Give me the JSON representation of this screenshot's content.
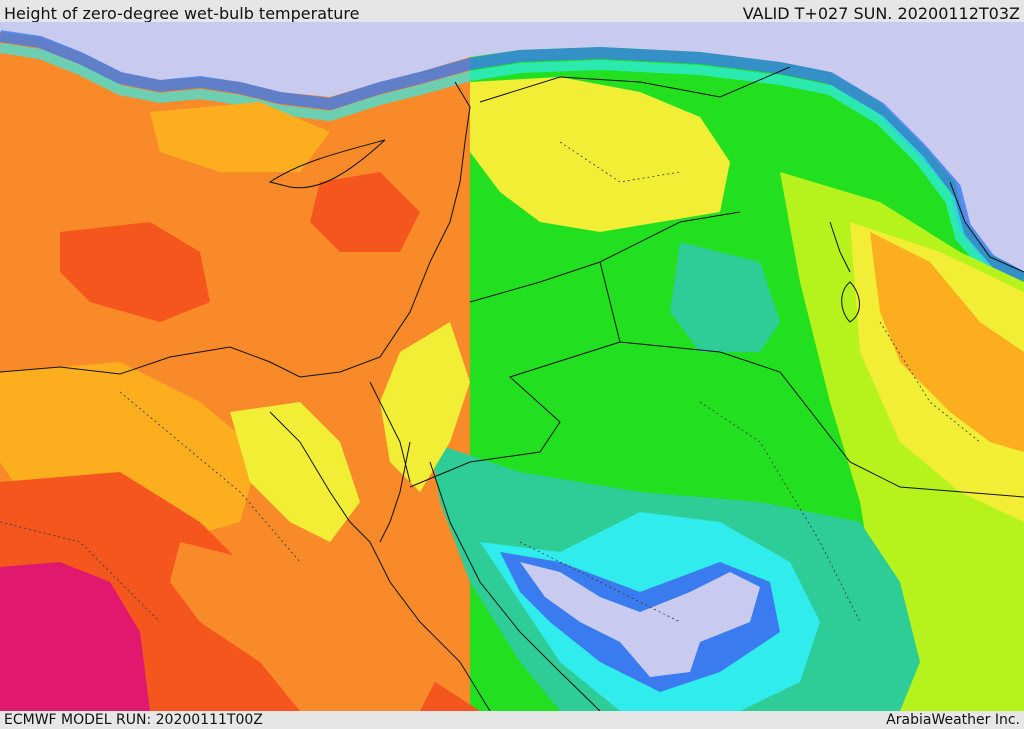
{
  "header": {
    "title": "Height of zero-degree wet-bulb temperature",
    "valid": "VALID T+027 SUN. 20200112T03Z"
  },
  "footer": {
    "model_run": "ECMWF MODEL RUN: 20200111T00Z",
    "credit": "ArabiaWeather Inc."
  },
  "colors": {
    "sea": "#c8cbef",
    "magenta": "#e0186e",
    "red": "#f4561d",
    "orange": "#f98a2a",
    "amber": "#fcae1e",
    "yellow": "#f2ee36",
    "chartreuse": "#b6f21c",
    "green": "#22e01f",
    "teal": "#2ecc96",
    "cyan": "#30ecec",
    "blue": "#3a7cf0",
    "lavender": "#c8cbef",
    "border": "#111111"
  }
}
